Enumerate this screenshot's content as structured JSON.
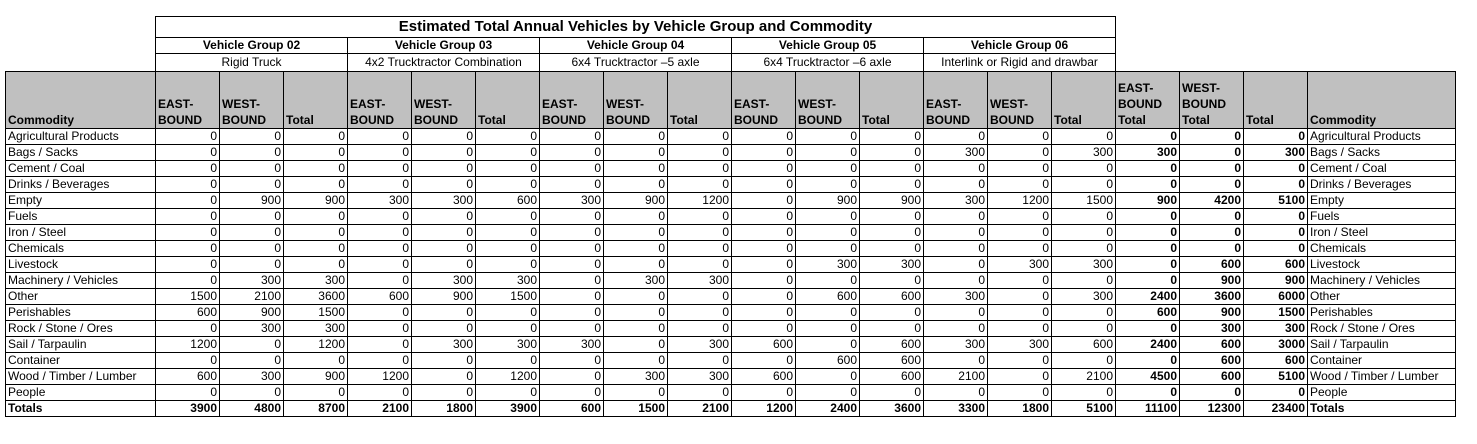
{
  "title": "Estimated Total Annual Vehicles by Vehicle Group and Commodity",
  "groups": [
    {
      "name": "Vehicle Group 02",
      "sub": "Rigid Truck"
    },
    {
      "name": "Vehicle Group 03",
      "sub": "4x2 Trucktractor Combination"
    },
    {
      "name": "Vehicle Group 04",
      "sub": "6x4 Trucktractor –5 axle"
    },
    {
      "name": "Vehicle Group 05",
      "sub": "6x4 Trucktractor –6 axle"
    },
    {
      "name": "Vehicle Group 06",
      "sub": "Interlink or Rigid and drawbar"
    }
  ],
  "headers": {
    "commodity": "Commodity",
    "east": "EAST-BOUND",
    "west": "WEST-BOUND",
    "total": "Total",
    "east_total": "EAST-BOUND Total",
    "west_total": "WEST-BOUND Total",
    "grand_total": "Total",
    "commodity_right": "Commodity"
  },
  "rows": [
    {
      "commodity": "Agricultural Products",
      "values": [
        "0",
        "0",
        "0",
        "0",
        "0",
        "0",
        "0",
        "0",
        "0",
        "0",
        "0",
        "0",
        "0",
        "0",
        "0",
        "0",
        "0",
        "0"
      ]
    },
    {
      "commodity": "Bags / Sacks",
      "values": [
        "0",
        "0",
        "0",
        "0",
        "0",
        "0",
        "0",
        "0",
        "0",
        "0",
        "0",
        "0",
        "300",
        "0",
        "300",
        "300",
        "0",
        "300"
      ]
    },
    {
      "commodity": "Cement / Coal",
      "values": [
        "0",
        "0",
        "0",
        "0",
        "0",
        "0",
        "0",
        "0",
        "0",
        "0",
        "0",
        "0",
        "0",
        "0",
        "0",
        "0",
        "0",
        "0"
      ]
    },
    {
      "commodity": "Drinks / Beverages",
      "values": [
        "0",
        "0",
        "0",
        "0",
        "0",
        "0",
        "0",
        "0",
        "0",
        "0",
        "0",
        "0",
        "0",
        "0",
        "0",
        "0",
        "0",
        "0"
      ]
    },
    {
      "commodity": "Empty",
      "values": [
        "0",
        "900",
        "900",
        "300",
        "300",
        "600",
        "300",
        "900",
        "1200",
        "0",
        "900",
        "900",
        "300",
        "1200",
        "1500",
        "900",
        "4200",
        "5100"
      ]
    },
    {
      "commodity": "Fuels",
      "values": [
        "0",
        "0",
        "0",
        "0",
        "0",
        "0",
        "0",
        "0",
        "0",
        "0",
        "0",
        "0",
        "0",
        "0",
        "0",
        "0",
        "0",
        "0"
      ]
    },
    {
      "commodity": "Iron / Steel",
      "values": [
        "0",
        "0",
        "0",
        "0",
        "0",
        "0",
        "0",
        "0",
        "0",
        "0",
        "0",
        "0",
        "0",
        "0",
        "0",
        "0",
        "0",
        "0"
      ]
    },
    {
      "commodity": "Chemicals",
      "values": [
        "0",
        "0",
        "0",
        "0",
        "0",
        "0",
        "0",
        "0",
        "0",
        "0",
        "0",
        "0",
        "0",
        "0",
        "0",
        "0",
        "0",
        "0"
      ]
    },
    {
      "commodity": "Livestock",
      "values": [
        "0",
        "0",
        "0",
        "0",
        "0",
        "0",
        "0",
        "0",
        "0",
        "0",
        "300",
        "300",
        "0",
        "300",
        "300",
        "0",
        "600",
        "600"
      ]
    },
    {
      "commodity": "Machinery / Vehicles",
      "values": [
        "0",
        "300",
        "300",
        "0",
        "300",
        "300",
        "0",
        "300",
        "300",
        "0",
        "0",
        "0",
        "0",
        "0",
        "0",
        "0",
        "900",
        "900"
      ]
    },
    {
      "commodity": "Other",
      "values": [
        "1500",
        "2100",
        "3600",
        "600",
        "900",
        "1500",
        "0",
        "0",
        "0",
        "0",
        "600",
        "600",
        "300",
        "0",
        "300",
        "2400",
        "3600",
        "6000"
      ]
    },
    {
      "commodity": "Perishables",
      "values": [
        "600",
        "900",
        "1500",
        "0",
        "0",
        "0",
        "0",
        "0",
        "0",
        "0",
        "0",
        "0",
        "0",
        "0",
        "0",
        "600",
        "900",
        "1500"
      ]
    },
    {
      "commodity": "Rock / Stone / Ores",
      "values": [
        "0",
        "300",
        "300",
        "0",
        "0",
        "0",
        "0",
        "0",
        "0",
        "0",
        "0",
        "0",
        "0",
        "0",
        "0",
        "0",
        "300",
        "300"
      ]
    },
    {
      "commodity": "Sail / Tarpaulin",
      "values": [
        "1200",
        "0",
        "1200",
        "0",
        "300",
        "300",
        "300",
        "0",
        "300",
        "600",
        "0",
        "600",
        "300",
        "300",
        "600",
        "2400",
        "600",
        "3000"
      ]
    },
    {
      "commodity": "Container",
      "values": [
        "0",
        "0",
        "0",
        "0",
        "0",
        "0",
        "0",
        "0",
        "0",
        "0",
        "600",
        "600",
        "0",
        "0",
        "0",
        "0",
        "600",
        "600"
      ]
    },
    {
      "commodity": "Wood / Timber / Lumber",
      "values": [
        "600",
        "300",
        "900",
        "1200",
        "0",
        "1200",
        "0",
        "300",
        "300",
        "600",
        "0",
        "600",
        "2100",
        "0",
        "2100",
        "4500",
        "600",
        "5100"
      ]
    },
    {
      "commodity": "People",
      "values": [
        "0",
        "0",
        "0",
        "0",
        "0",
        "0",
        "0",
        "0",
        "0",
        "0",
        "0",
        "0",
        "0",
        "0",
        "0",
        "0",
        "0",
        "0"
      ]
    }
  ],
  "totals": {
    "label": "Totals",
    "values": [
      "3900",
      "4800",
      "8700",
      "2100",
      "1800",
      "3900",
      "600",
      "1500",
      "2100",
      "1200",
      "2400",
      "3600",
      "3300",
      "1800",
      "5100",
      "11100",
      "12300",
      "23400"
    ]
  }
}
